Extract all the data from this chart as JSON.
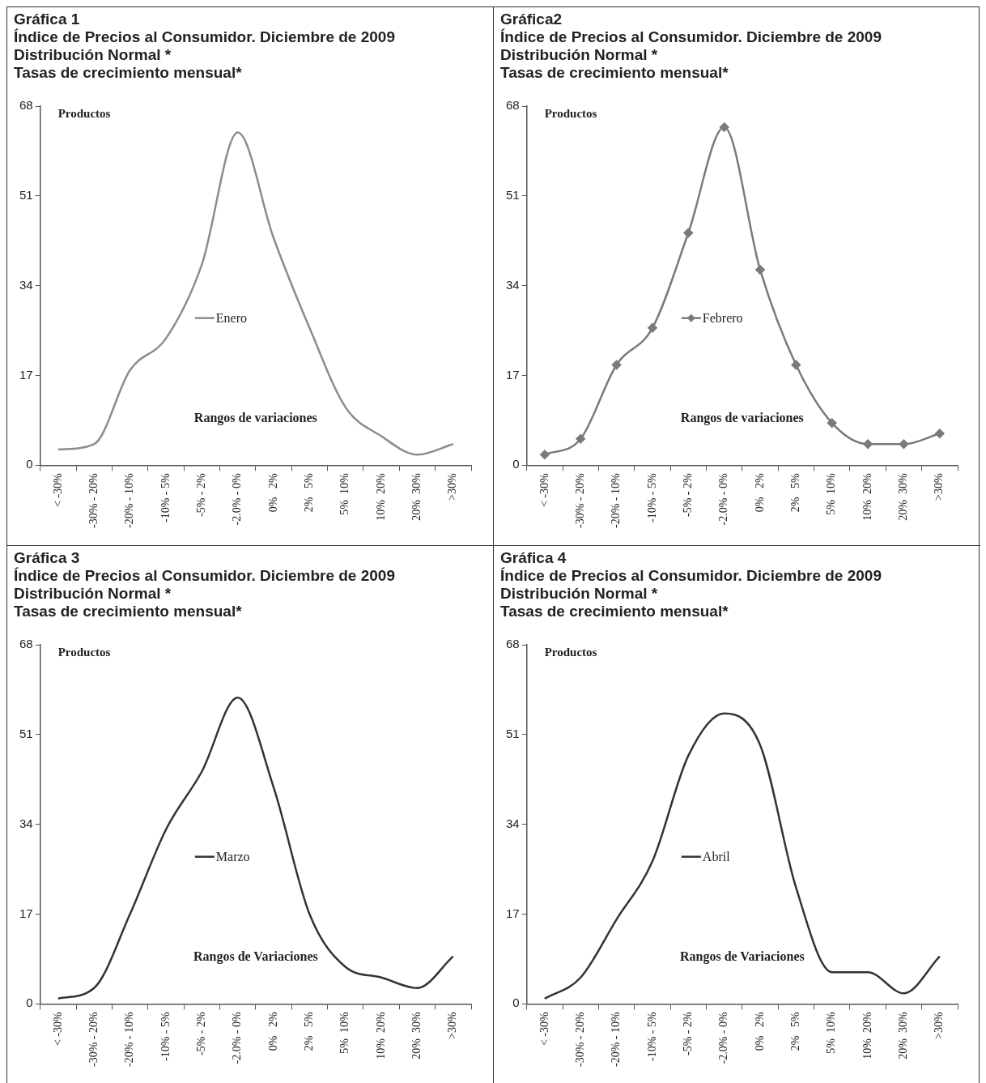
{
  "chart_data": [
    {
      "type": "line",
      "title": "Gráfica 1",
      "subtitle": "Índice de Precios al Consumidor. Diciembre de 2009\nDistribución Normal *\nTasas de crecimiento mensual*",
      "ylabel": "Productos",
      "xlabel": "Rangos de variaciones",
      "categories": [
        "< -30%",
        "-30% - 20%",
        "-20% - 10%",
        "-10% - 5%",
        "-5% - 2%",
        "-2.0% - 0%",
        "0%   2%",
        "2%   5%",
        "5%  10%",
        "10%  20%",
        "20%  30%",
        ">30%"
      ],
      "series": [
        {
          "name": "Enero",
          "color": "#8c8c8c",
          "values": [
            3,
            4,
            18,
            24,
            38,
            63,
            43,
            26,
            11,
            5.5,
            2,
            4
          ]
        }
      ],
      "ylim": [
        0,
        68
      ],
      "yticks": [
        0,
        17,
        34,
        51,
        68
      ],
      "grid": false,
      "legend": "center",
      "marker": "none"
    },
    {
      "type": "line",
      "title": "Gráfica2",
      "subtitle": "Índice de Precios al Consumidor. Diciembre de 2009\nDistribución Normal *\nTasas de crecimiento mensual*",
      "ylabel": "Productos",
      "xlabel": "Rangos de variaciones",
      "categories": [
        "< -30%",
        "-30% - 20%",
        "-20% - 10%",
        "-10% - 5%",
        "-5% - 2%",
        "-2.0% - 0%",
        "0%   2%",
        "2%   5%",
        "5%  10%",
        "10%  20%",
        "20%  30%",
        ">30%"
      ],
      "series": [
        {
          "name": "Febrero",
          "color": "#7a7a7a",
          "values": [
            2,
            5,
            19,
            26,
            44,
            64,
            37,
            19,
            8,
            4,
            4,
            6
          ]
        }
      ],
      "ylim": [
        0,
        68
      ],
      "yticks": [
        0,
        17,
        34,
        51,
        68
      ],
      "grid": false,
      "legend": "center",
      "marker": "diamond"
    },
    {
      "type": "line",
      "title": "Gráfica 3",
      "subtitle": "Índice de Precios al Consumidor. Diciembre de 2009\nDistribución Normal *\nTasas de crecimiento mensual*",
      "ylabel": "Productos",
      "xlabel": "Rangos de Variaciones",
      "categories": [
        "< -30%",
        "-30% - 20%",
        "-20% - 10%",
        "-10% - 5%",
        "-5% - 2%",
        "-2.0% - 0%",
        "0%   2%",
        "2%   5%",
        "5%  10%",
        "10%  20%",
        "20%  30%",
        ">30%"
      ],
      "series": [
        {
          "name": "Marzo",
          "color": "#333333",
          "values": [
            1,
            3,
            17,
            33,
            44,
            58,
            41,
            17,
            7,
            5,
            3,
            9
          ]
        }
      ],
      "ylim": [
        0,
        68
      ],
      "yticks": [
        0,
        17,
        34,
        51,
        68
      ],
      "grid": false,
      "legend": "center",
      "marker": "none"
    },
    {
      "type": "line",
      "title": "Gráfica 4",
      "subtitle": "Índice de Precios al Consumidor. Diciembre de 2009\nDistribución Normal *\nTasas de crecimiento mensual*",
      "ylabel": "Productos",
      "xlabel": "Rangos de Variaciones",
      "categories": [
        "< -30%",
        "-30% - 20%",
        "-20% - 10%",
        "-10% - 5%",
        "-5% - 2%",
        "-2.0% - 0%",
        "0%   2%",
        "2%   5%",
        "5%  10%",
        "10%  20%",
        "20%  30%",
        ">30%"
      ],
      "series": [
        {
          "name": "Abril",
          "color": "#333333",
          "values": [
            1,
            5,
            16,
            27,
            47,
            55,
            49,
            22,
            6,
            6,
            2,
            9
          ]
        }
      ],
      "ylim": [
        0,
        68
      ],
      "yticks": [
        0,
        17,
        34,
        51,
        68
      ],
      "grid": false,
      "legend": "center",
      "marker": "none"
    }
  ]
}
